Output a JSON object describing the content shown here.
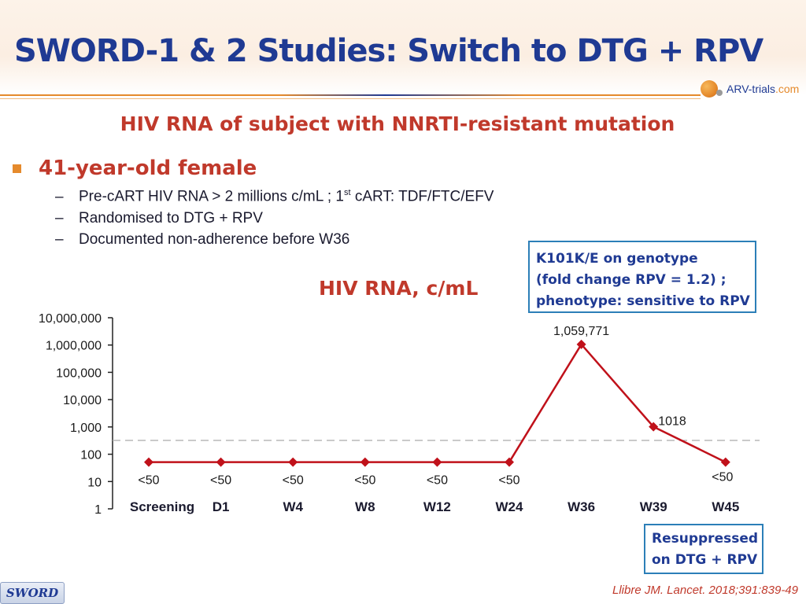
{
  "slide": {
    "title": "SWORD-1 & 2 Studies: Switch to DTG + RPV",
    "logo": {
      "text_main": "ARV-trials",
      "text_suffix": ".com"
    },
    "subtitle": "HIV RNA of subject with NNRTI-resistant mutation",
    "bullet_main": "41-year-old female",
    "sub_bullets": [
      {
        "dash": "–",
        "pre": "Pre-cART HIV RNA > 2 millions c/mL ; 1",
        "sup": "st",
        "post": " cART: TDF/FTC/EFV"
      },
      {
        "dash": "–",
        "text": "Randomised to DTG + RPV"
      },
      {
        "dash": "–",
        "text": "Documented non-adherence before W36"
      }
    ],
    "callout_top": [
      "K101K/E on genotype",
      "(fold change RPV = 1.2) ;",
      "phenotype: sensitive to RPV"
    ],
    "callout_bottom": [
      "Resuppressed",
      "on DTG + RPV"
    ],
    "citation": "Llibre JM. Lancet. 2018;391:839-49",
    "badge": "SWORD"
  },
  "colors": {
    "title": "#1f3a93",
    "accent_red": "#c0392b",
    "accent_orange": "#e58a2c",
    "line": "#c0111a",
    "callout_border": "#2c7fb8"
  },
  "chart_data": {
    "type": "line",
    "title": "HIV RNA, c/mL",
    "yscale": "log",
    "ylim": [
      1,
      10000000
    ],
    "yticks": [
      1,
      10,
      100,
      1000,
      10000,
      100000,
      1000000,
      10000000
    ],
    "ytick_labels": [
      "1",
      "10",
      "100",
      "1,000",
      "10,000",
      "100,000",
      "1,000,000",
      "10,000,000"
    ],
    "categories": [
      "Screening",
      "D1",
      "W4",
      "W8",
      "W12",
      "W24",
      "W36",
      "W39",
      "W45"
    ],
    "threshold": 50,
    "series": [
      {
        "values": [
          50,
          50,
          50,
          50,
          50,
          50,
          1059771,
          1018,
          50
        ],
        "labels": [
          "<50",
          "<50",
          "<50",
          "<50",
          "<50",
          "<50",
          "1,059,771",
          "1018",
          "<50"
        ]
      }
    ]
  }
}
